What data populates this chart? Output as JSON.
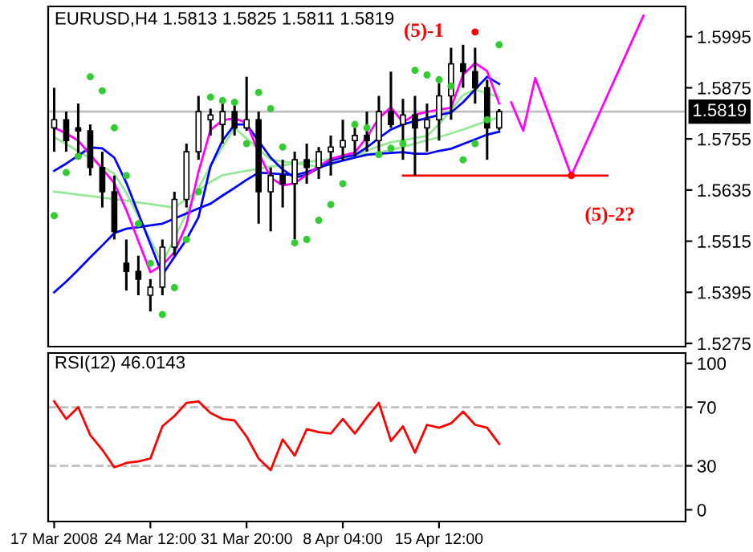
{
  "chart_data": [
    {
      "type": "candlestick",
      "title": "EURUSD,H4 1.5813 1.5825 1.5811 1.5819",
      "grid": false,
      "color": "#000000",
      "categories": [
        null,
        null,
        null,
        null,
        null,
        null,
        null,
        null,
        null,
        null,
        null,
        null,
        null,
        null,
        null,
        null,
        null,
        null,
        null,
        null,
        null,
        null,
        null,
        null,
        null,
        null,
        null,
        null,
        null,
        null,
        null,
        null,
        null,
        null,
        null,
        null,
        null,
        null,
        null,
        null,
        null,
        null,
        null,
        null,
        null,
        null,
        null,
        null,
        null,
        null,
        null,
        null,
        null
      ],
      "ohlc": [
        [
          1.5781,
          1.5875,
          1.5725,
          1.58
        ],
        [
          1.58,
          1.5819,
          1.5725,
          1.5751
        ],
        [
          1.5781,
          1.5838,
          1.5714,
          1.5774
        ],
        [
          1.5774,
          1.5789,
          1.5669,
          1.5688
        ],
        [
          1.5688,
          1.5725,
          1.5594,
          1.5631
        ],
        [
          1.5631,
          1.5669,
          1.5519,
          1.5538
        ],
        [
          1.5463,
          1.5519,
          1.5399,
          1.5444
        ],
        [
          1.5444,
          1.5481,
          1.5388,
          1.5426
        ],
        [
          1.5388,
          1.5426,
          1.535,
          1.5407
        ],
        [
          1.5407,
          1.5519,
          1.5388,
          1.5501
        ],
        [
          1.5501,
          1.5631,
          1.5481,
          1.5613
        ],
        [
          1.5613,
          1.5744,
          1.5594,
          1.5725
        ],
        [
          1.5725,
          1.5856,
          1.5706,
          1.5819
        ],
        [
          1.58,
          1.5826,
          1.5763,
          1.5811
        ],
        [
          1.5789,
          1.5849,
          1.5744,
          1.5819
        ],
        [
          1.5819,
          1.5838,
          1.5763,
          1.5781
        ],
        [
          1.5781,
          1.5901,
          1.5774,
          1.58
        ],
        [
          1.58,
          1.5819,
          1.5556,
          1.5631
        ],
        [
          1.5631,
          1.5688,
          1.5538,
          1.5669
        ],
        [
          1.5669,
          1.5706,
          1.5594,
          1.565
        ],
        [
          1.565,
          1.5725,
          1.5519,
          1.5706
        ],
        [
          1.5706,
          1.5744,
          1.565,
          1.5688
        ],
        [
          1.5688,
          1.5736,
          1.5661,
          1.5725
        ],
        [
          1.5725,
          1.5763,
          1.5669,
          1.5736
        ],
        [
          1.5736,
          1.58,
          1.5706,
          1.5751
        ],
        [
          1.5751,
          1.5781,
          1.5714,
          1.5763
        ],
        [
          1.5763,
          1.5819,
          1.5725,
          1.5751
        ],
        [
          1.5751,
          1.5856,
          1.5725,
          1.5819
        ],
        [
          1.5819,
          1.5913,
          1.5781,
          1.5789
        ],
        [
          1.5789,
          1.5849,
          1.5706,
          1.5811
        ],
        [
          1.5811,
          1.5856,
          1.5669,
          1.5781
        ],
        [
          1.5781,
          1.5838,
          1.5725,
          1.58
        ],
        [
          1.58,
          1.5886,
          1.5751,
          1.5856
        ],
        [
          1.5856,
          1.5969,
          1.58,
          1.5931
        ],
        [
          1.5931,
          1.5976,
          1.5875,
          1.5913
        ],
        [
          1.5913,
          1.5969,
          1.5838,
          1.5875
        ],
        [
          1.5875,
          1.5894,
          1.5706,
          1.5781
        ],
        [
          1.5781,
          1.5825,
          1.5775,
          1.5819
        ],
        null,
        null,
        null,
        null,
        null,
        null,
        null,
        null,
        null,
        null,
        null,
        null,
        null,
        null,
        null
      ],
      "series": [
        {
          "type": "line",
          "color": "#98e698",
          "values": [
            1.5759,
            1.5743,
            1.5726,
            1.5709,
            1.569,
            1.5673,
            1.5628,
            1.5573,
            1.5518,
            1.5463,
            1.5522,
            1.5581,
            1.564,
            1.5691,
            1.5736,
            1.5781,
            1.5756,
            1.5731,
            1.5706,
            1.5702,
            1.5698,
            1.5694,
            1.569,
            1.5694,
            1.5705,
            1.5716,
            1.5727,
            1.5738,
            1.5747,
            1.5752,
            1.5757,
            1.5762,
            1.5789,
            1.5823,
            1.5858,
            1.5871,
            1.5862,
            1.5853,
            null,
            null,
            null,
            null,
            null,
            null,
            null,
            null,
            null,
            null,
            null,
            null,
            null,
            null,
            null
          ]
        },
        {
          "type": "line",
          "color": "#98e698",
          "values": [
            1.5631,
            1.5628,
            1.5624,
            1.5621,
            1.5617,
            1.5614,
            1.561,
            1.5606,
            1.5602,
            1.5598,
            1.5594,
            1.5614,
            1.5634,
            1.5654,
            1.567,
            1.5675,
            1.568,
            1.5685,
            1.569,
            1.5693,
            1.5697,
            1.5701,
            1.5704,
            1.5708,
            1.5712,
            1.5716,
            1.5719,
            1.5723,
            1.5729,
            1.5736,
            1.5744,
            1.5752,
            1.5759,
            1.5768,
            1.5777,
            1.5787,
            1.5797,
            1.5806,
            null,
            null,
            null,
            null,
            null,
            null,
            null,
            null,
            null,
            null,
            null,
            null,
            null,
            null,
            null
          ]
        },
        {
          "type": "line",
          "color": "#0000ff",
          "values": [
            1.5395,
            1.542,
            1.5448,
            1.5477,
            1.5505,
            1.5534,
            1.5544,
            1.5548,
            1.5552,
            1.5556,
            1.5568,
            1.558,
            1.5592,
            1.5603,
            1.5622,
            1.564,
            1.5659,
            1.5676,
            1.5674,
            1.5672,
            1.567,
            1.5677,
            1.5687,
            1.5697,
            1.5704,
            1.5711,
            1.5718,
            1.572,
            1.5722,
            1.5724,
            1.572,
            1.572,
            1.5727,
            1.5732,
            1.5743,
            1.5754,
            1.5765,
            1.5772,
            null,
            null,
            null,
            null,
            null,
            null,
            null,
            null,
            null,
            null,
            null,
            null,
            null,
            null,
            null
          ]
        },
        {
          "type": "line",
          "color": "#0000ff",
          "values": [
            1.568,
            1.5697,
            1.5716,
            1.5735,
            1.5733,
            1.5711,
            1.5652,
            1.558,
            1.5508,
            1.5436,
            1.5478,
            1.5519,
            1.5571,
            1.5691,
            1.5751,
            1.5789,
            1.5789,
            1.575,
            1.5711,
            1.5683,
            1.5664,
            1.5671,
            1.5687,
            1.5704,
            1.5712,
            1.5717,
            1.5735,
            1.5757,
            1.5777,
            1.5789,
            1.5797,
            1.5804,
            1.5811,
            1.5817,
            1.5841,
            1.5871,
            1.5901,
            1.5884,
            null,
            null,
            null,
            null,
            null,
            null,
            null,
            null,
            null,
            null,
            null,
            null,
            null,
            null,
            null
          ]
        },
        {
          "type": "line",
          "color": "#ff00ff",
          "values": [
            1.5781,
            1.5768,
            1.5751,
            1.5718,
            1.5685,
            1.5651,
            1.5588,
            1.5515,
            1.5442,
            1.5459,
            1.5489,
            1.5554,
            1.5678,
            1.5776,
            1.5799,
            1.5803,
            1.5793,
            1.5722,
            1.5664,
            1.5646,
            1.5651,
            1.5671,
            1.5691,
            1.5708,
            1.5716,
            1.5723,
            1.5759,
            1.5804,
            1.5829,
            1.5794,
            1.5812,
            1.5818,
            1.5824,
            1.5828,
            1.5906,
            1.5933,
            1.5914,
            1.5838,
            null,
            null,
            null,
            null,
            null,
            null,
            null,
            null,
            null,
            null,
            null,
            null,
            null,
            null,
            null
          ]
        },
        {
          "type": "scatter",
          "marker": "circle",
          "color": "#33cc33",
          "values": [
            1.5575,
            1.5676,
            1.5714,
            1.5901,
            1.5868,
            1.5781,
            1.5669,
            1.5556,
            1.5463,
            1.5343,
            1.5406,
            1.5519,
            1.5631,
            1.5853,
            1.5845,
            1.5841,
            1.5744,
            1.5864,
            1.5826,
            1.5736,
            1.5511,
            1.5519,
            1.5564,
            1.5601,
            1.565,
            1.5789,
            1.5781,
            1.5718,
            1.5733,
            1.5744,
            1.5916,
            1.5905,
            1.5894,
            1.5879,
            1.5706,
            1.5744,
            1.58,
            1.5976,
            null,
            null,
            null,
            null,
            null,
            null,
            null,
            null,
            null,
            null,
            null,
            null,
            null,
            null,
            null
          ]
        },
        {
          "type": "line",
          "color": "#ff0000",
          "values": [
            null,
            null,
            null,
            null,
            null,
            null,
            null,
            null,
            null,
            null,
            null,
            null,
            null,
            null,
            null,
            null,
            null,
            null,
            null,
            null,
            null,
            null,
            null,
            null,
            null,
            null,
            null,
            null,
            null,
            1.5669,
            1.5669,
            1.5669,
            1.5669,
            1.5669,
            1.5669,
            1.5669,
            1.5669,
            1.5669,
            1.5669,
            1.5669,
            1.5669,
            1.5669,
            1.5669,
            1.5669,
            1.5669,
            1.5669,
            1.5669,
            null,
            null,
            null,
            null,
            null,
            null
          ]
        },
        {
          "type": "line",
          "color": "#ff00ff",
          "values": [
            null,
            null,
            null,
            null,
            null,
            null,
            null,
            null,
            null,
            null,
            null,
            null,
            null,
            null,
            null,
            null,
            null,
            null,
            null,
            null,
            null,
            null,
            null,
            null,
            null,
            null,
            null,
            null,
            null,
            null,
            null,
            null,
            null,
            null,
            null,
            null,
            null,
            null,
            1.5841,
            1.5774,
            1.5898,
            1.5822,
            1.5746,
            1.5669,
            1.5732,
            1.5794,
            1.5857,
            1.5919,
            1.5982,
            1.6044,
            null,
            null,
            null
          ]
        },
        {
          "type": "scatter",
          "marker": "circle",
          "color": "#ff0000",
          "values": [
            null,
            null,
            null,
            null,
            null,
            null,
            null,
            null,
            null,
            null,
            null,
            null,
            null,
            null,
            null,
            null,
            null,
            null,
            null,
            null,
            null,
            null,
            null,
            null,
            null,
            null,
            null,
            null,
            null,
            null,
            null,
            null,
            null,
            null,
            null,
            1.6006,
            null,
            null,
            null,
            null,
            null,
            null,
            null,
            1.5669,
            null,
            null,
            null,
            null,
            null,
            null,
            null,
            null,
            null
          ]
        }
      ],
      "annotations": [
        "(5)-1",
        "(5)-2?"
      ],
      "ref_lines": [
        {
          "axis": "y",
          "value": 1.5819,
          "label": "1.5819",
          "color": "#c0c0c0"
        }
      ],
      "ylim": [
        1.52675,
        1.6066
      ],
      "yticks": [
        1.5275,
        1.5395,
        1.5515,
        1.5635,
        1.5755,
        1.5875,
        1.5995
      ]
    },
    {
      "type": "line",
      "title": "RSI(12) 46.0143",
      "grid": false,
      "categories": [
        "17 Mar 2008",
        null,
        null,
        null,
        null,
        null,
        null,
        null,
        "24 Mar 12:00",
        null,
        null,
        null,
        null,
        null,
        null,
        null,
        "31 Mar 20:00",
        null,
        null,
        null,
        null,
        null,
        null,
        null,
        "8 Apr 04:00",
        null,
        null,
        null,
        null,
        null,
        null,
        null,
        "15 Apr 12:00",
        null,
        null,
        null,
        null,
        null,
        null,
        null,
        null,
        null,
        null,
        null,
        null,
        null,
        null,
        null,
        null,
        null,
        null,
        null,
        null
      ],
      "series": [
        {
          "color": "#ff0000",
          "values": [
            74,
            62,
            70,
            51,
            41,
            29,
            32,
            33,
            35,
            57,
            64,
            73,
            74,
            66,
            62,
            61,
            50,
            35,
            27,
            48,
            37,
            55,
            53,
            52,
            62,
            52,
            63,
            73,
            47,
            57,
            39,
            58,
            56,
            59,
            67,
            58,
            56,
            45,
            null,
            null,
            null,
            null,
            null,
            null,
            null,
            null,
            null,
            null,
            null,
            null,
            null,
            null,
            null
          ]
        }
      ],
      "ref_lines": [
        {
          "axis": "y",
          "value": 30,
          "color": "#c0c0c0",
          "line_style": "dashed"
        },
        {
          "axis": "y",
          "value": 70,
          "color": "#c0c0c0",
          "line_style": "dashed"
        }
      ],
      "ylim": [
        -8,
        107
      ],
      "yticks": [
        0,
        30,
        70,
        100
      ]
    }
  ]
}
